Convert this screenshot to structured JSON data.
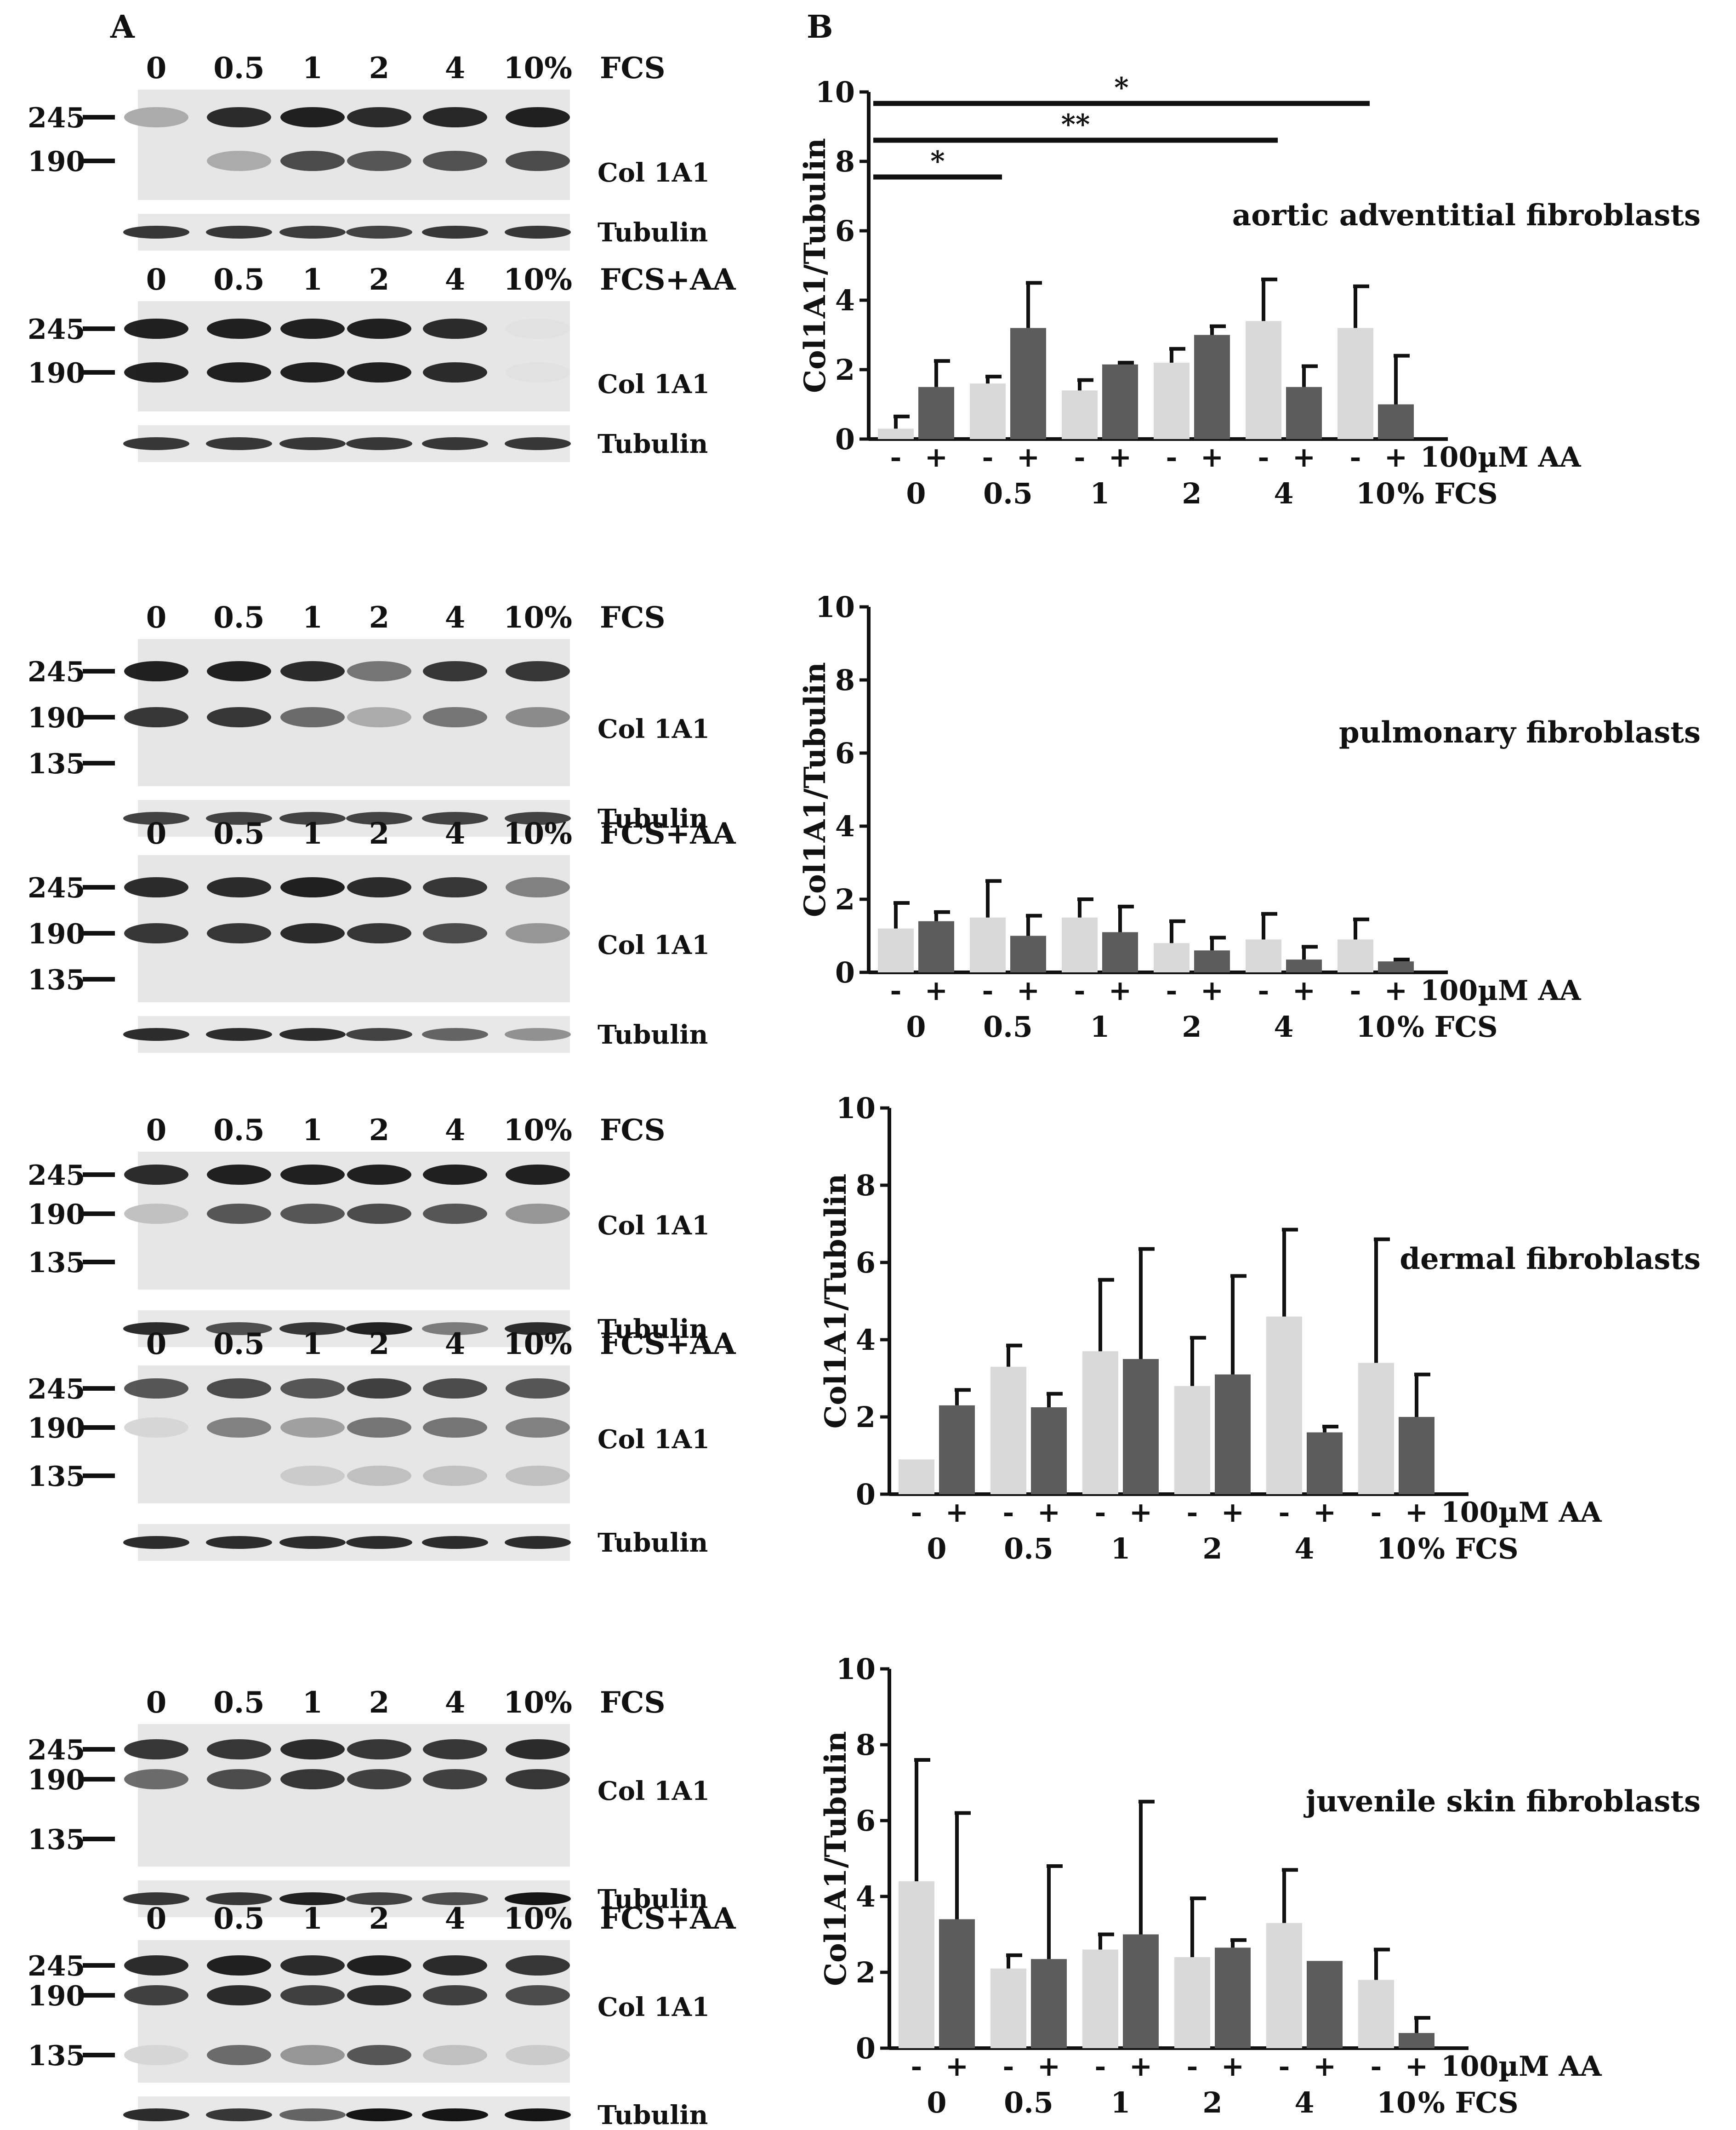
{
  "figure": {
    "panel_a_label": "A",
    "panel_b_label": "B",
    "lane_labels": [
      "0",
      "0.5",
      "1",
      "2",
      "4",
      "10%"
    ],
    "fcs_label": "FCS",
    "fcs_aa_label": "FCS+AA",
    "col_label": "Col 1A1",
    "tubulin_label": "Tubulin",
    "y_label": "Col1A1/Tubulin",
    "aa_label": "100µM AA",
    "fcs_axis_label": "% FCS",
    "plus": "+",
    "minus": "-"
  },
  "colors": {
    "light_bar": "#d9d9d9",
    "dark_bar": "#5c5c5c",
    "axis": "#111111"
  },
  "blot_rows": [
    {
      "name": "aortic",
      "markers": [
        {
          "label": "245",
          "band": 0
        },
        {
          "label": "190",
          "band": 1
        }
      ],
      "fcs_bands": [
        {
          "intensity": [
            0.3,
            0.9,
            0.95,
            0.9,
            0.92,
            0.95
          ]
        },
        {
          "intensity": [
            0.0,
            0.3,
            0.75,
            0.7,
            0.72,
            0.75
          ]
        }
      ],
      "aa_bands": [
        {
          "intensity": [
            0.95,
            0.95,
            0.95,
            0.95,
            0.9,
            0.05
          ]
        },
        {
          "intensity": [
            0.95,
            0.95,
            0.95,
            0.95,
            0.9,
            0.05
          ]
        }
      ],
      "tubulin": [
        0.8,
        0.8,
        0.78,
        0.75,
        0.8,
        0.8
      ],
      "tubulin_aa": [
        0.8,
        0.8,
        0.8,
        0.8,
        0.8,
        0.8
      ]
    },
    {
      "name": "pulmonary",
      "markers": [
        {
          "label": "245",
          "band": 0
        },
        {
          "label": "190",
          "band": 1
        },
        {
          "label": "135",
          "band": 2
        }
      ],
      "fcs_bands": [
        {
          "intensity": [
            0.95,
            0.95,
            0.9,
            0.55,
            0.85,
            0.85
          ]
        },
        {
          "intensity": [
            0.85,
            0.85,
            0.6,
            0.3,
            0.55,
            0.45
          ]
        },
        {
          "intensity": [
            0.0,
            0.0,
            0.0,
            0.0,
            0.0,
            0.0
          ]
        }
      ],
      "aa_bands": [
        {
          "intensity": [
            0.9,
            0.9,
            0.95,
            0.9,
            0.85,
            0.5
          ]
        },
        {
          "intensity": [
            0.85,
            0.85,
            0.9,
            0.85,
            0.75,
            0.4
          ]
        },
        {
          "intensity": [
            0.0,
            0.0,
            0.0,
            0.0,
            0.0,
            0.0
          ]
        }
      ],
      "tubulin": [
        0.75,
        0.75,
        0.75,
        0.75,
        0.75,
        0.75
      ],
      "tubulin_aa": [
        0.85,
        0.85,
        0.85,
        0.75,
        0.6,
        0.4
      ]
    },
    {
      "name": "dermal",
      "markers": [
        {
          "label": "245",
          "band": 0
        },
        {
          "label": "190",
          "band": 1
        },
        {
          "label": "135",
          "band": 2
        }
      ],
      "fcs_bands": [
        {
          "intensity": [
            0.9,
            0.95,
            0.95,
            0.95,
            0.95,
            0.95
          ]
        },
        {
          "intensity": [
            0.2,
            0.7,
            0.7,
            0.75,
            0.7,
            0.4
          ]
        },
        {
          "intensity": [
            0.0,
            0.0,
            0.0,
            0.0,
            0.0,
            0.0
          ]
        }
      ],
      "aa_bands": [
        {
          "intensity": [
            0.7,
            0.75,
            0.7,
            0.8,
            0.75,
            0.7
          ]
        },
        {
          "intensity": [
            0.1,
            0.5,
            0.35,
            0.55,
            0.55,
            0.5
          ]
        },
        {
          "intensity": [
            0.0,
            0.0,
            0.15,
            0.2,
            0.2,
            0.2
          ]
        }
      ],
      "tubulin": [
        0.85,
        0.7,
        0.8,
        0.9,
        0.5,
        0.85
      ],
      "tubulin_aa": [
        0.85,
        0.85,
        0.85,
        0.85,
        0.85,
        0.85
      ]
    },
    {
      "name": "juvenile",
      "markers": [
        {
          "label": "245",
          "band": 0
        },
        {
          "label": "190",
          "band": 1
        },
        {
          "label": "135",
          "band": 2
        }
      ],
      "fcs_bands": [
        {
          "intensity": [
            0.85,
            0.85,
            0.9,
            0.85,
            0.85,
            0.9
          ]
        },
        {
          "intensity": [
            0.6,
            0.75,
            0.85,
            0.8,
            0.8,
            0.85
          ]
        },
        {
          "intensity": [
            0.0,
            0.0,
            0.0,
            0.0,
            0.0,
            0.0
          ]
        }
      ],
      "aa_bands": [
        {
          "intensity": [
            0.9,
            0.95,
            0.9,
            0.95,
            0.9,
            0.85
          ]
        },
        {
          "intensity": [
            0.8,
            0.9,
            0.8,
            0.9,
            0.8,
            0.75
          ]
        },
        {
          "intensity": [
            0.1,
            0.6,
            0.4,
            0.7,
            0.2,
            0.15
          ]
        }
      ],
      "tubulin": [
        0.8,
        0.8,
        0.9,
        0.75,
        0.7,
        0.95
      ],
      "tubulin_aa": [
        0.85,
        0.8,
        0.6,
        0.95,
        0.95,
        0.95
      ]
    }
  ],
  "chart_data": [
    {
      "type": "bar",
      "title": "aortic adventitial fibroblasts",
      "ylabel": "Col1A1/Tubulin",
      "xlabel": "% FCS",
      "categories": [
        "0",
        "0.5",
        "1",
        "2",
        "4",
        "10"
      ],
      "series": [
        {
          "name": "-",
          "values": [
            0.3,
            1.6,
            1.4,
            2.2,
            3.4,
            3.2
          ],
          "errors": [
            0.35,
            0.2,
            0.3,
            0.4,
            1.2,
            1.2
          ]
        },
        {
          "name": "+ 100µM AA",
          "values": [
            1.5,
            3.2,
            2.15,
            3.0,
            1.5,
            1.0
          ],
          "errors": [
            0.75,
            1.3,
            0.05,
            0.25,
            0.6,
            1.4
          ]
        }
      ],
      "ylim": [
        0,
        10
      ],
      "yticks": [
        0,
        2,
        4,
        6,
        8,
        10
      ],
      "annotations": [
        {
          "text": "*",
          "from": "0",
          "to": "0.5"
        },
        {
          "text": "**",
          "from": "0",
          "to": "4"
        },
        {
          "text": "*",
          "from": "0",
          "to": "10"
        }
      ]
    },
    {
      "type": "bar",
      "title": "pulmonary fibroblasts",
      "ylabel": "Col1A1/Tubulin",
      "xlabel": "% FCS",
      "categories": [
        "0",
        "0.5",
        "1",
        "2",
        "4",
        "10"
      ],
      "series": [
        {
          "name": "-",
          "values": [
            1.2,
            1.5,
            1.5,
            0.8,
            0.9,
            0.9
          ],
          "errors": [
            0.7,
            1.0,
            0.5,
            0.6,
            0.7,
            0.55
          ]
        },
        {
          "name": "+ 100µM AA",
          "values": [
            1.4,
            1.0,
            1.1,
            0.6,
            0.35,
            0.3
          ],
          "errors": [
            0.25,
            0.55,
            0.7,
            0.35,
            0.35,
            0.05
          ]
        }
      ],
      "ylim": [
        0,
        10
      ],
      "yticks": [
        0,
        2,
        4,
        6,
        8,
        10
      ],
      "annotations": []
    },
    {
      "type": "bar",
      "title": "dermal fibroblasts",
      "ylabel": "Col1A1/Tubulin",
      "xlabel": "% FCS",
      "categories": [
        "0",
        "0.5",
        "1",
        "2",
        "4",
        "10"
      ],
      "series": [
        {
          "name": "-",
          "values": [
            0.9,
            3.3,
            3.7,
            2.8,
            4.6,
            3.4
          ],
          "errors": [
            0.0,
            0.55,
            1.85,
            1.25,
            2.25,
            3.2
          ]
        },
        {
          "name": "+ 100µM AA",
          "values": [
            2.3,
            2.25,
            3.5,
            3.1,
            1.6,
            2.0
          ],
          "errors": [
            0.4,
            0.35,
            2.85,
            2.55,
            0.15,
            1.1
          ]
        }
      ],
      "ylim": [
        0,
        10
      ],
      "yticks": [
        0,
        2,
        4,
        6,
        8,
        10
      ],
      "annotations": []
    },
    {
      "type": "bar",
      "title": "juvenile skin fibroblasts",
      "ylabel": "Col1A1/Tubulin",
      "xlabel": "% FCS",
      "categories": [
        "0",
        "0.5",
        "1",
        "2",
        "4",
        "10"
      ],
      "series": [
        {
          "name": "-",
          "values": [
            4.4,
            2.1,
            2.6,
            2.4,
            3.3,
            1.8
          ],
          "errors": [
            3.2,
            0.35,
            0.4,
            1.55,
            1.4,
            0.8
          ]
        },
        {
          "name": "+ 100µM AA",
          "values": [
            3.4,
            2.35,
            3.0,
            2.65,
            2.3,
            0.4
          ],
          "errors": [
            2.8,
            2.45,
            3.5,
            0.2,
            0.0,
            0.4
          ]
        }
      ],
      "ylim": [
        0,
        10
      ],
      "yticks": [
        0,
        2,
        4,
        6,
        8,
        10
      ],
      "annotations": []
    }
  ]
}
